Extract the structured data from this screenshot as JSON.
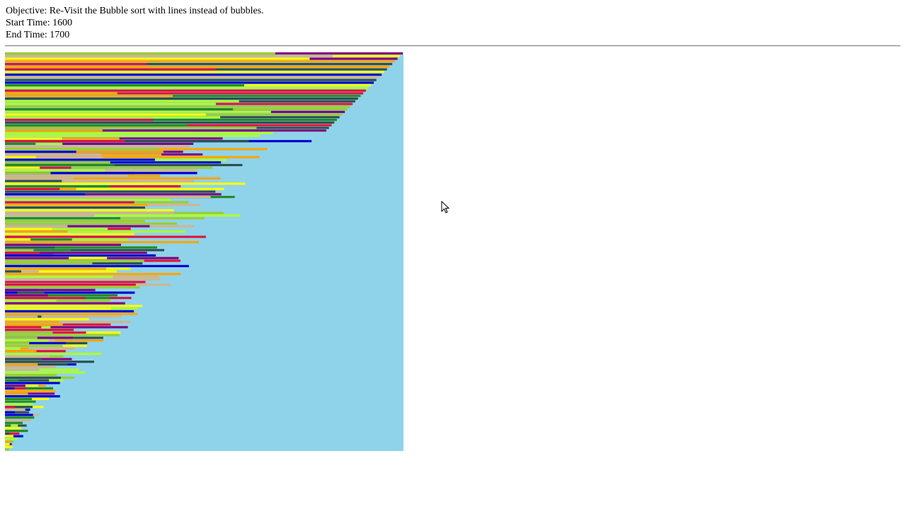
{
  "objective": "Objective: Re-Visit the Bubble sort with lines instead of bubbles.",
  "start_time": "Start Time: 1600",
  "end_time": "End Time: 1700"
}
